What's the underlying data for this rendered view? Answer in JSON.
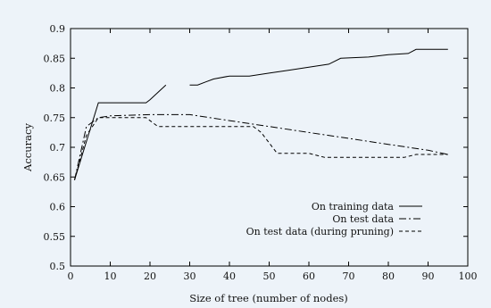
{
  "chart_data": {
    "type": "line",
    "title": "",
    "xlabel": "Size of tree (number of nodes)",
    "ylabel": "Accuracy",
    "xlim": [
      0,
      100
    ],
    "ylim": [
      0.5,
      0.9
    ],
    "xticks": [
      "0",
      "10",
      "20",
      "30",
      "40",
      "50",
      "60",
      "70",
      "80",
      "90",
      "100"
    ],
    "yticks": [
      "0.5",
      "0.55",
      "0.6",
      "0.65",
      "0.7",
      "0.75",
      "0.8",
      "0.85",
      "0.9"
    ],
    "grid": false,
    "legend_position": "bottom-right",
    "series": [
      {
        "name": "On training data",
        "style": "solid",
        "color": "#000000",
        "segments": [
          [
            [
              1,
              0.645
            ],
            [
              7,
              0.775
            ],
            [
              8,
              0.775
            ],
            [
              19,
              0.775
            ],
            [
              20,
              0.78
            ],
            [
              24,
              0.805
            ]
          ],
          [
            [
              30,
              0.805
            ],
            [
              32,
              0.805
            ],
            [
              34,
              0.81
            ],
            [
              36,
              0.815
            ],
            [
              40,
              0.82
            ],
            [
              45,
              0.82
            ],
            [
              50,
              0.825
            ],
            [
              55,
              0.83
            ],
            [
              60,
              0.835
            ],
            [
              65,
              0.84
            ],
            [
              68,
              0.85
            ],
            [
              75,
              0.852
            ],
            [
              80,
              0.856
            ],
            [
              85,
              0.858
            ],
            [
              87,
              0.865
            ],
            [
              95,
              0.865
            ]
          ]
        ]
      },
      {
        "name": "On test data",
        "style": "dash-dot",
        "color": "#000000",
        "segments": [
          [
            [
              1,
              0.645
            ],
            [
              4,
              0.735
            ],
            [
              7,
              0.75
            ],
            [
              10,
              0.753
            ],
            [
              20,
              0.755
            ],
            [
              30,
              0.755
            ],
            [
              40,
              0.745
            ],
            [
              50,
              0.735
            ],
            [
              60,
              0.725
            ],
            [
              70,
              0.715
            ],
            [
              80,
              0.705
            ],
            [
              90,
              0.695
            ],
            [
              95,
              0.688
            ]
          ]
        ]
      },
      {
        "name": "On test data (during pruning)",
        "style": "dashed",
        "color": "#000000",
        "segments": [
          [
            [
              1,
              0.645
            ],
            [
              4,
              0.72
            ],
            [
              7,
              0.75
            ],
            [
              19,
              0.75
            ],
            [
              22,
              0.735
            ],
            [
              30,
              0.735
            ],
            [
              46,
              0.735
            ],
            [
              48,
              0.725
            ],
            [
              52,
              0.69
            ],
            [
              60,
              0.69
            ],
            [
              64,
              0.683
            ],
            [
              70,
              0.683
            ],
            [
              84,
              0.683
            ],
            [
              87,
              0.688
            ],
            [
              95,
              0.688
            ]
          ]
        ]
      }
    ]
  }
}
